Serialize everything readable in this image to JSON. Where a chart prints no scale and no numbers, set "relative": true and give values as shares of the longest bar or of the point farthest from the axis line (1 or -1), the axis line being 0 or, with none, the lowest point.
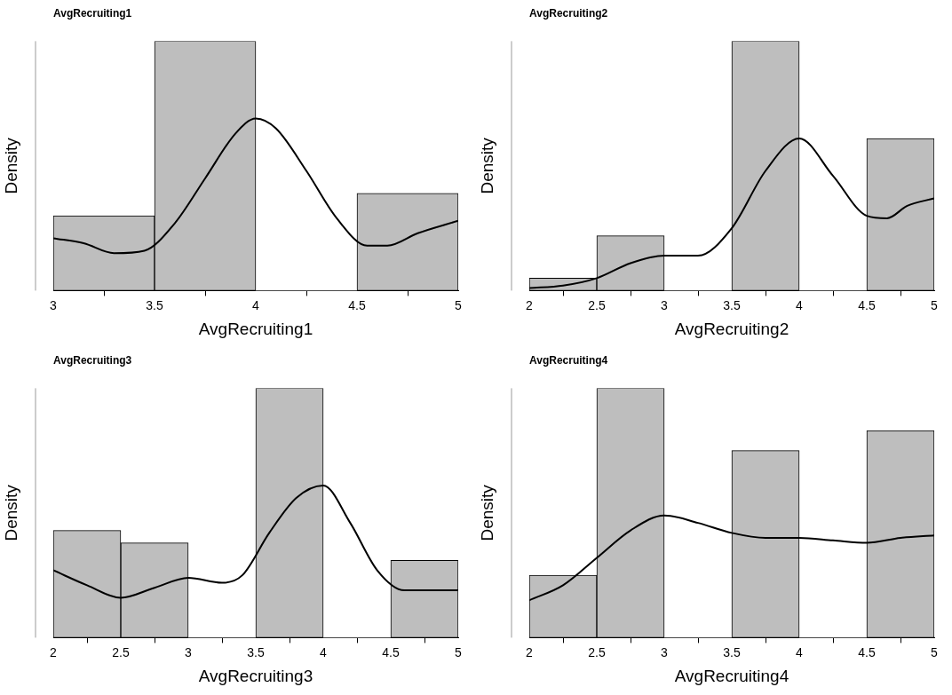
{
  "chart_data": [
    {
      "type": "histogram",
      "title": "AvgRecruiting1",
      "xlabel": "AvgRecruiting1",
      "ylabel": "Density",
      "relative": true,
      "bins": [
        3,
        3.5,
        4,
        4.5,
        5
      ],
      "values": [
        0.3,
        1,
        0,
        0.39
      ],
      "color": "#bebebe",
      "xlim": [
        3,
        5
      ],
      "xticks": [
        3,
        3.5,
        4,
        4.5,
        5
      ],
      "tick_labels": "x",
      "series": [
        {
          "type": "line",
          "color": "#000000",
          "x": [
            3,
            3.15,
            3.3,
            3.45,
            3.6,
            3.75,
            3.9,
            4,
            4.1,
            4.25,
            4.4,
            4.55,
            4.65,
            4.8,
            5
          ],
          "values": [
            0.21,
            0.19,
            0.15,
            0.16,
            0.27,
            0.45,
            0.63,
            0.69,
            0.65,
            0.48,
            0.29,
            0.18,
            0.18,
            0.23,
            0.28
          ]
        }
      ]
    },
    {
      "type": "histogram",
      "title": "AvgRecruiting2",
      "xlabel": "AvgRecruiting2",
      "ylabel": "Density",
      "relative": true,
      "bins": [
        2,
        2.5,
        3,
        3.5,
        4,
        4.5,
        5
      ],
      "values": [
        0.05,
        0.22,
        0,
        1,
        0,
        0.61
      ],
      "color": "#bebebe",
      "xlim": [
        2,
        5
      ],
      "xticks": [
        2,
        2.5,
        3,
        3.5,
        4,
        4.5,
        5
      ],
      "tick_labels": "x",
      "series": [
        {
          "type": "line",
          "color": "#000000",
          "x": [
            2,
            2.25,
            2.5,
            2.75,
            3,
            3.25,
            3.5,
            3.75,
            4,
            4.25,
            4.5,
            4.65,
            4.8,
            5
          ],
          "values": [
            0.01,
            0.02,
            0.05,
            0.11,
            0.14,
            0.14,
            0.25,
            0.48,
            0.61,
            0.46,
            0.3,
            0.29,
            0.34,
            0.37
          ]
        }
      ]
    },
    {
      "type": "histogram",
      "title": "AvgRecruiting3",
      "xlabel": "AvgRecruiting3",
      "ylabel": "Density",
      "relative": true,
      "bins": [
        2,
        2.5,
        3,
        3.5,
        4,
        4.5,
        5
      ],
      "values": [
        0.43,
        0.38,
        0,
        1,
        0,
        0.31
      ],
      "color": "#bebebe",
      "xlim": [
        2,
        5
      ],
      "xticks": [
        2,
        2.5,
        3,
        3.5,
        4,
        4.5,
        5
      ],
      "tick_labels": "x",
      "series": [
        {
          "type": "line",
          "color": "#000000",
          "x": [
            2,
            2.25,
            2.5,
            2.75,
            3,
            3.25,
            3.4,
            3.6,
            3.8,
            4,
            4.2,
            4.4,
            4.6,
            4.8,
            5
          ],
          "values": [
            0.27,
            0.21,
            0.16,
            0.2,
            0.24,
            0.22,
            0.25,
            0.42,
            0.56,
            0.61,
            0.46,
            0.27,
            0.19,
            0.19,
            0.19
          ]
        }
      ]
    },
    {
      "type": "histogram",
      "title": "AvgRecruiting4",
      "xlabel": "AvgRecruiting4",
      "ylabel": "Density",
      "relative": true,
      "bins": [
        2,
        2.5,
        3,
        3.5,
        4,
        4.5,
        5
      ],
      "values": [
        0.25,
        1,
        0,
        0.75,
        0,
        0.83
      ],
      "color": "#bebebe",
      "xlim": [
        2,
        5
      ],
      "xticks": [
        2,
        2.5,
        3,
        3.5,
        4,
        4.5,
        5
      ],
      "tick_labels": "x",
      "series": [
        {
          "type": "line",
          "color": "#000000",
          "x": [
            2,
            2.25,
            2.5,
            2.75,
            3,
            3.25,
            3.5,
            3.75,
            4,
            4.25,
            4.5,
            4.75,
            5
          ],
          "values": [
            0.15,
            0.21,
            0.32,
            0.43,
            0.49,
            0.46,
            0.42,
            0.4,
            0.4,
            0.39,
            0.38,
            0.4,
            0.41
          ]
        }
      ]
    }
  ]
}
